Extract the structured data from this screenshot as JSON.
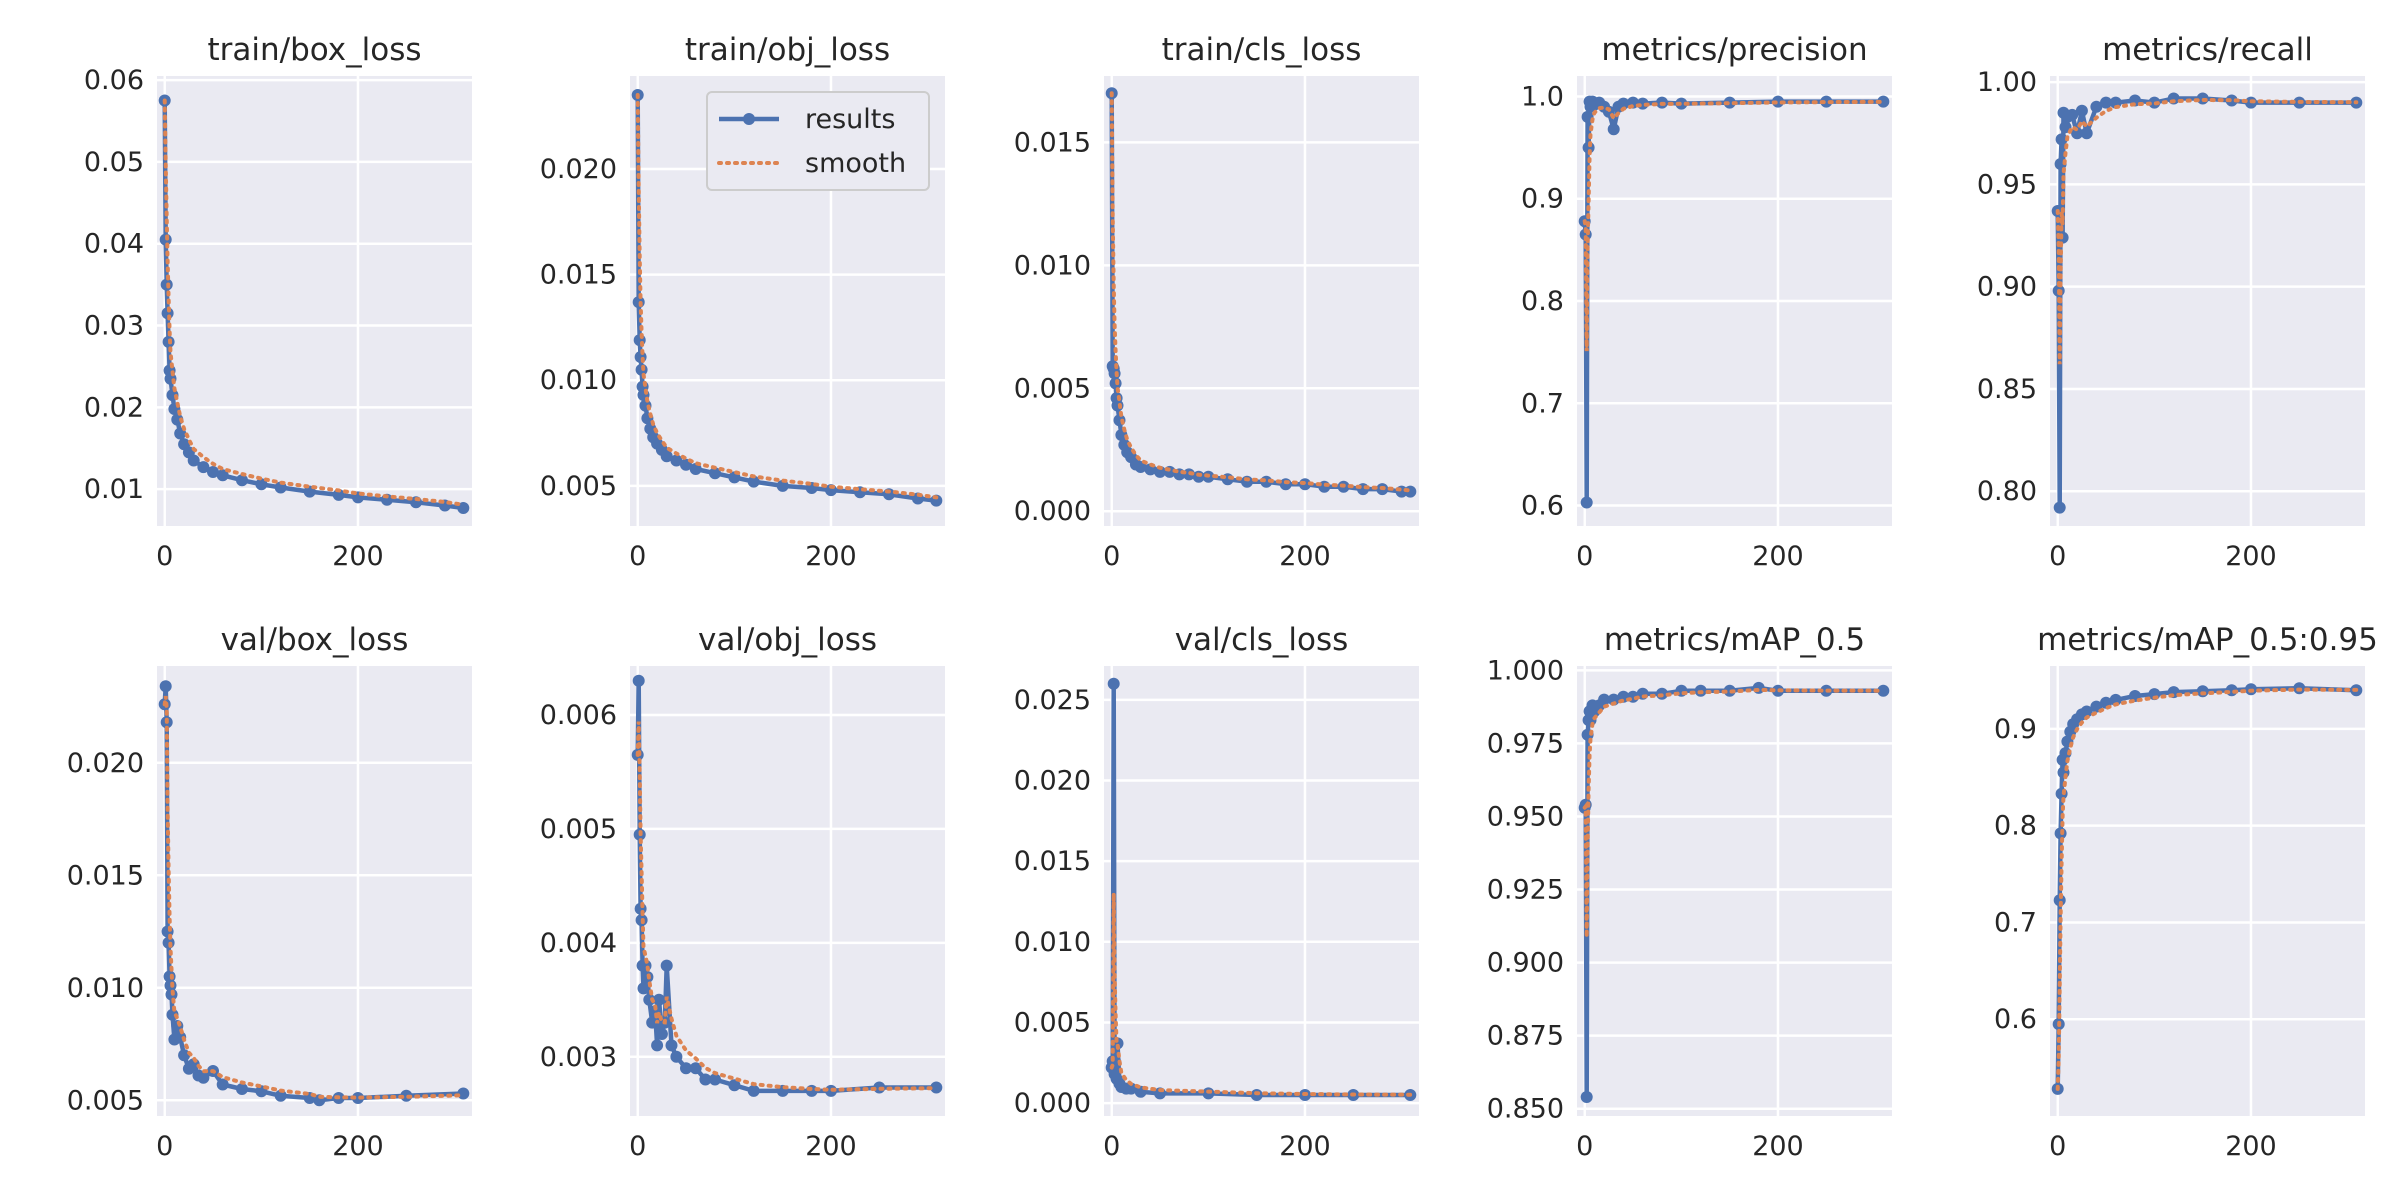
{
  "colors": {
    "results": "#4c72b0",
    "smooth": "#dd8452",
    "panel": "#eaeaf2",
    "grid": "#ffffff"
  },
  "legend": {
    "results_label": "results",
    "smooth_label": "smooth",
    "placement": "top-right of train/obj_loss"
  },
  "chart_data": [
    {
      "type": "line",
      "title": "train/box_loss",
      "xlim": [
        -8,
        318
      ],
      "ylim": [
        0.0055,
        0.0605
      ],
      "xticks": [
        {
          "v": 0,
          "label": "0"
        },
        {
          "v": 200,
          "label": "200"
        }
      ],
      "yticks": [
        {
          "v": 0.01,
          "label": "0.01"
        },
        {
          "v": 0.02,
          "label": "0.02"
        },
        {
          "v": 0.03,
          "label": "0.03"
        },
        {
          "v": 0.04,
          "label": "0.04"
        },
        {
          "v": 0.05,
          "label": "0.05"
        },
        {
          "v": 0.06,
          "label": "0.06"
        }
      ],
      "series": [
        {
          "name": "results",
          "x": [
            0,
            1,
            2,
            3,
            4,
            5,
            6,
            8,
            10,
            13,
            16,
            20,
            25,
            30,
            40,
            50,
            60,
            80,
            100,
            120,
            150,
            180,
            200,
            230,
            260,
            290,
            309
          ],
          "y": [
            0.0575,
            0.0405,
            0.035,
            0.0315,
            0.028,
            0.0245,
            0.0235,
            0.0215,
            0.0198,
            0.0185,
            0.0168,
            0.0155,
            0.0145,
            0.0135,
            0.0127,
            0.0121,
            0.0117,
            0.0111,
            0.0106,
            0.0102,
            0.0097,
            0.0093,
            0.009,
            0.0087,
            0.0084,
            0.008,
            0.0077
          ]
        }
      ]
    },
    {
      "type": "line",
      "title": "train/obj_loss",
      "xlim": [
        -8,
        318
      ],
      "ylim": [
        0.0031,
        0.0244
      ],
      "xticks": [
        {
          "v": 0,
          "label": "0"
        },
        {
          "v": 200,
          "label": "200"
        }
      ],
      "yticks": [
        {
          "v": 0.005,
          "label": "0.005"
        },
        {
          "v": 0.01,
          "label": "0.010"
        },
        {
          "v": 0.015,
          "label": "0.015"
        },
        {
          "v": 0.02,
          "label": "0.020"
        }
      ],
      "series": [
        {
          "name": "results",
          "x": [
            0,
            1,
            2,
            3,
            4,
            5,
            6,
            8,
            10,
            13,
            16,
            20,
            25,
            30,
            40,
            50,
            60,
            80,
            100,
            120,
            150,
            180,
            200,
            230,
            260,
            290,
            309
          ],
          "y": [
            0.0235,
            0.0137,
            0.0119,
            0.0111,
            0.0105,
            0.0097,
            0.0093,
            0.0088,
            0.0082,
            0.0077,
            0.0073,
            0.007,
            0.0067,
            0.0064,
            0.0062,
            0.006,
            0.0058,
            0.0056,
            0.0054,
            0.0052,
            0.005,
            0.0049,
            0.0048,
            0.0047,
            0.0046,
            0.0044,
            0.0043
          ]
        }
      ]
    },
    {
      "type": "line",
      "title": "train/cls_loss",
      "xlim": [
        -8,
        318
      ],
      "ylim": [
        -0.0006,
        0.0177
      ],
      "xticks": [
        {
          "v": 0,
          "label": "0"
        },
        {
          "v": 200,
          "label": "200"
        }
      ],
      "yticks": [
        {
          "v": 0,
          "label": "0.000"
        },
        {
          "v": 0.005,
          "label": "0.005"
        },
        {
          "v": 0.01,
          "label": "0.010"
        },
        {
          "v": 0.015,
          "label": "0.015"
        }
      ],
      "series": [
        {
          "name": "results",
          "x": [
            0,
            1,
            2,
            3,
            4,
            5,
            6,
            8,
            10,
            13,
            16,
            20,
            25,
            30,
            40,
            50,
            60,
            70,
            80,
            90,
            100,
            120,
            140,
            160,
            180,
            200,
            220,
            240,
            260,
            280,
            300,
            309
          ],
          "y": [
            0.017,
            0.0059,
            0.0058,
            0.0056,
            0.0052,
            0.0046,
            0.0043,
            0.0037,
            0.0031,
            0.0027,
            0.0024,
            0.0022,
            0.0019,
            0.0018,
            0.0017,
            0.0016,
            0.0016,
            0.0015,
            0.0015,
            0.0014,
            0.0014,
            0.0013,
            0.0012,
            0.0012,
            0.0011,
            0.0011,
            0.001,
            0.001,
            0.0009,
            0.0009,
            0.0008,
            0.0008
          ]
        }
      ]
    },
    {
      "type": "line",
      "title": "metrics/precision",
      "xlim": [
        -8,
        318
      ],
      "ylim": [
        0.58,
        1.02
      ],
      "xticks": [
        {
          "v": 0,
          "label": "0"
        },
        {
          "v": 200,
          "label": "200"
        }
      ],
      "yticks": [
        {
          "v": 0.6,
          "label": "0.6"
        },
        {
          "v": 0.7,
          "label": "0.7"
        },
        {
          "v": 0.8,
          "label": "0.8"
        },
        {
          "v": 0.9,
          "label": "0.9"
        },
        {
          "v": 1.0,
          "label": "1.0"
        }
      ],
      "series": [
        {
          "name": "results",
          "x": [
            0,
            1,
            2,
            3,
            4,
            5,
            6,
            8,
            10,
            15,
            20,
            25,
            30,
            35,
            40,
            50,
            60,
            80,
            100,
            150,
            200,
            250,
            309
          ],
          "y": [
            0.878,
            0.865,
            0.603,
            0.98,
            0.95,
            0.995,
            0.99,
            0.995,
            0.992,
            0.994,
            0.99,
            0.985,
            0.968,
            0.99,
            0.993,
            0.994,
            0.993,
            0.994,
            0.993,
            0.994,
            0.995,
            0.995,
            0.995
          ]
        }
      ]
    },
    {
      "type": "line",
      "title": "metrics/recall",
      "xlim": [
        -8,
        318
      ],
      "ylim": [
        0.783,
        1.003
      ],
      "xticks": [
        {
          "v": 0,
          "label": "0"
        },
        {
          "v": 200,
          "label": "200"
        }
      ],
      "yticks": [
        {
          "v": 0.8,
          "label": "0.80"
        },
        {
          "v": 0.85,
          "label": "0.85"
        },
        {
          "v": 0.9,
          "label": "0.90"
        },
        {
          "v": 0.95,
          "label": "0.95"
        },
        {
          "v": 1.0,
          "label": "1.00"
        }
      ],
      "series": [
        {
          "name": "results",
          "x": [
            0,
            1,
            2,
            3,
            4,
            5,
            6,
            8,
            10,
            15,
            20,
            25,
            30,
            40,
            50,
            60,
            80,
            100,
            120,
            150,
            180,
            200,
            250,
            309
          ],
          "y": [
            0.937,
            0.898,
            0.792,
            0.96,
            0.972,
            0.924,
            0.985,
            0.978,
            0.983,
            0.984,
            0.975,
            0.986,
            0.975,
            0.988,
            0.99,
            0.99,
            0.991,
            0.99,
            0.992,
            0.992,
            0.991,
            0.99,
            0.99,
            0.99
          ]
        }
      ]
    },
    {
      "type": "line",
      "title": "val/box_loss",
      "xlim": [
        -8,
        318
      ],
      "ylim": [
        0.0043,
        0.0243
      ],
      "xticks": [
        {
          "v": 0,
          "label": "0"
        },
        {
          "v": 200,
          "label": "200"
        }
      ],
      "yticks": [
        {
          "v": 0.005,
          "label": "0.005"
        },
        {
          "v": 0.01,
          "label": "0.010"
        },
        {
          "v": 0.015,
          "label": "0.015"
        },
        {
          "v": 0.02,
          "label": "0.020"
        }
      ],
      "series": [
        {
          "name": "results",
          "x": [
            0,
            1,
            2,
            3,
            4,
            5,
            6,
            7,
            8,
            10,
            13,
            16,
            20,
            25,
            30,
            35,
            40,
            50,
            60,
            80,
            100,
            120,
            150,
            160,
            180,
            200,
            250,
            309
          ],
          "y": [
            0.0226,
            0.0234,
            0.0218,
            0.0125,
            0.012,
            0.0105,
            0.0101,
            0.0097,
            0.0088,
            0.0077,
            0.0083,
            0.0078,
            0.007,
            0.0064,
            0.0066,
            0.0061,
            0.006,
            0.0063,
            0.0057,
            0.0055,
            0.0054,
            0.0052,
            0.0051,
            0.005,
            0.0051,
            0.0051,
            0.0052,
            0.0053
          ]
        }
      ]
    },
    {
      "type": "line",
      "title": "val/obj_loss",
      "xlim": [
        -8,
        318
      ],
      "ylim": [
        0.00248,
        0.00643
      ],
      "xticks": [
        {
          "v": 0,
          "label": "0"
        },
        {
          "v": 200,
          "label": "200"
        }
      ],
      "yticks": [
        {
          "v": 0.003,
          "label": "0.003"
        },
        {
          "v": 0.004,
          "label": "0.004"
        },
        {
          "v": 0.005,
          "label": "0.005"
        },
        {
          "v": 0.006,
          "label": "0.006"
        }
      ],
      "series": [
        {
          "name": "results",
          "x": [
            0,
            1,
            2,
            3,
            4,
            5,
            6,
            8,
            10,
            12,
            15,
            18,
            20,
            22,
            25,
            28,
            30,
            35,
            40,
            50,
            60,
            70,
            80,
            100,
            120,
            150,
            180,
            200,
            250,
            309
          ],
          "y": [
            0.00565,
            0.0063,
            0.00495,
            0.0043,
            0.0042,
            0.0038,
            0.0036,
            0.0038,
            0.0037,
            0.0035,
            0.0033,
            0.0034,
            0.0031,
            0.0035,
            0.0032,
            0.0033,
            0.0038,
            0.0031,
            0.003,
            0.0029,
            0.0029,
            0.0028,
            0.0028,
            0.00275,
            0.0027,
            0.0027,
            0.0027,
            0.0027,
            0.00273,
            0.00273
          ]
        }
      ]
    },
    {
      "type": "line",
      "title": "val/cls_loss",
      "xlim": [
        -8,
        318
      ],
      "ylim": [
        -0.0008,
        0.0271
      ],
      "xticks": [
        {
          "v": 0,
          "label": "0"
        },
        {
          "v": 200,
          "label": "200"
        }
      ],
      "yticks": [
        {
          "v": 0,
          "label": "0.000"
        },
        {
          "v": 0.005,
          "label": "0.005"
        },
        {
          "v": 0.01,
          "label": "0.010"
        },
        {
          "v": 0.015,
          "label": "0.015"
        },
        {
          "v": 0.02,
          "label": "0.020"
        },
        {
          "v": 0.025,
          "label": "0.025"
        }
      ],
      "series": [
        {
          "name": "results",
          "x": [
            0,
            1,
            2,
            3,
            4,
            5,
            6,
            8,
            10,
            15,
            20,
            30,
            50,
            100,
            150,
            200,
            250,
            309
          ],
          "y": [
            0.0022,
            0.0026,
            0.026,
            0.0018,
            0.0025,
            0.0015,
            0.0037,
            0.0012,
            0.001,
            0.0009,
            0.0009,
            0.0007,
            0.0006,
            0.0006,
            0.0005,
            0.0005,
            0.0005,
            0.0005
          ]
        }
      ]
    },
    {
      "type": "line",
      "title": "metrics/mAP_0.5",
      "xlim": [
        -8,
        318
      ],
      "ylim": [
        0.8475,
        1.0015
      ],
      "xticks": [
        {
          "v": 0,
          "label": "0"
        },
        {
          "v": 200,
          "label": "200"
        }
      ],
      "yticks": [
        {
          "v": 0.85,
          "label": "0.850"
        },
        {
          "v": 0.875,
          "label": "0.875"
        },
        {
          "v": 0.9,
          "label": "0.900"
        },
        {
          "v": 0.925,
          "label": "0.925"
        },
        {
          "v": 0.95,
          "label": "0.950"
        },
        {
          "v": 0.975,
          "label": "0.975"
        },
        {
          "v": 1.0,
          "label": "1.000"
        }
      ],
      "series": [
        {
          "name": "results",
          "x": [
            0,
            1,
            2,
            3,
            4,
            5,
            6,
            8,
            10,
            15,
            20,
            30,
            40,
            50,
            60,
            80,
            100,
            120,
            150,
            180,
            200,
            250,
            309
          ],
          "y": [
            0.953,
            0.954,
            0.854,
            0.978,
            0.983,
            0.986,
            0.983,
            0.988,
            0.986,
            0.988,
            0.99,
            0.99,
            0.991,
            0.991,
            0.992,
            0.992,
            0.993,
            0.993,
            0.993,
            0.994,
            0.993,
            0.993,
            0.993
          ]
        }
      ]
    },
    {
      "type": "line",
      "title": "metrics/mAP_0.5:0.95",
      "xlim": [
        -8,
        318
      ],
      "ylim": [
        0.5,
        0.965
      ],
      "xticks": [
        {
          "v": 0,
          "label": "0"
        },
        {
          "v": 200,
          "label": "200"
        }
      ],
      "yticks": [
        {
          "v": 0.6,
          "label": "0.6"
        },
        {
          "v": 0.7,
          "label": "0.7"
        },
        {
          "v": 0.8,
          "label": "0.8"
        },
        {
          "v": 0.9,
          "label": "0.9"
        }
      ],
      "series": [
        {
          "name": "results",
          "x": [
            0,
            1,
            2,
            3,
            4,
            5,
            6,
            8,
            10,
            13,
            16,
            20,
            25,
            30,
            40,
            50,
            60,
            80,
            100,
            120,
            150,
            180,
            200,
            250,
            309
          ],
          "y": [
            0.528,
            0.595,
            0.723,
            0.792,
            0.833,
            0.868,
            0.855,
            0.875,
            0.887,
            0.897,
            0.905,
            0.91,
            0.915,
            0.918,
            0.923,
            0.927,
            0.93,
            0.934,
            0.936,
            0.938,
            0.939,
            0.94,
            0.941,
            0.942,
            0.94
          ]
        }
      ]
    }
  ]
}
